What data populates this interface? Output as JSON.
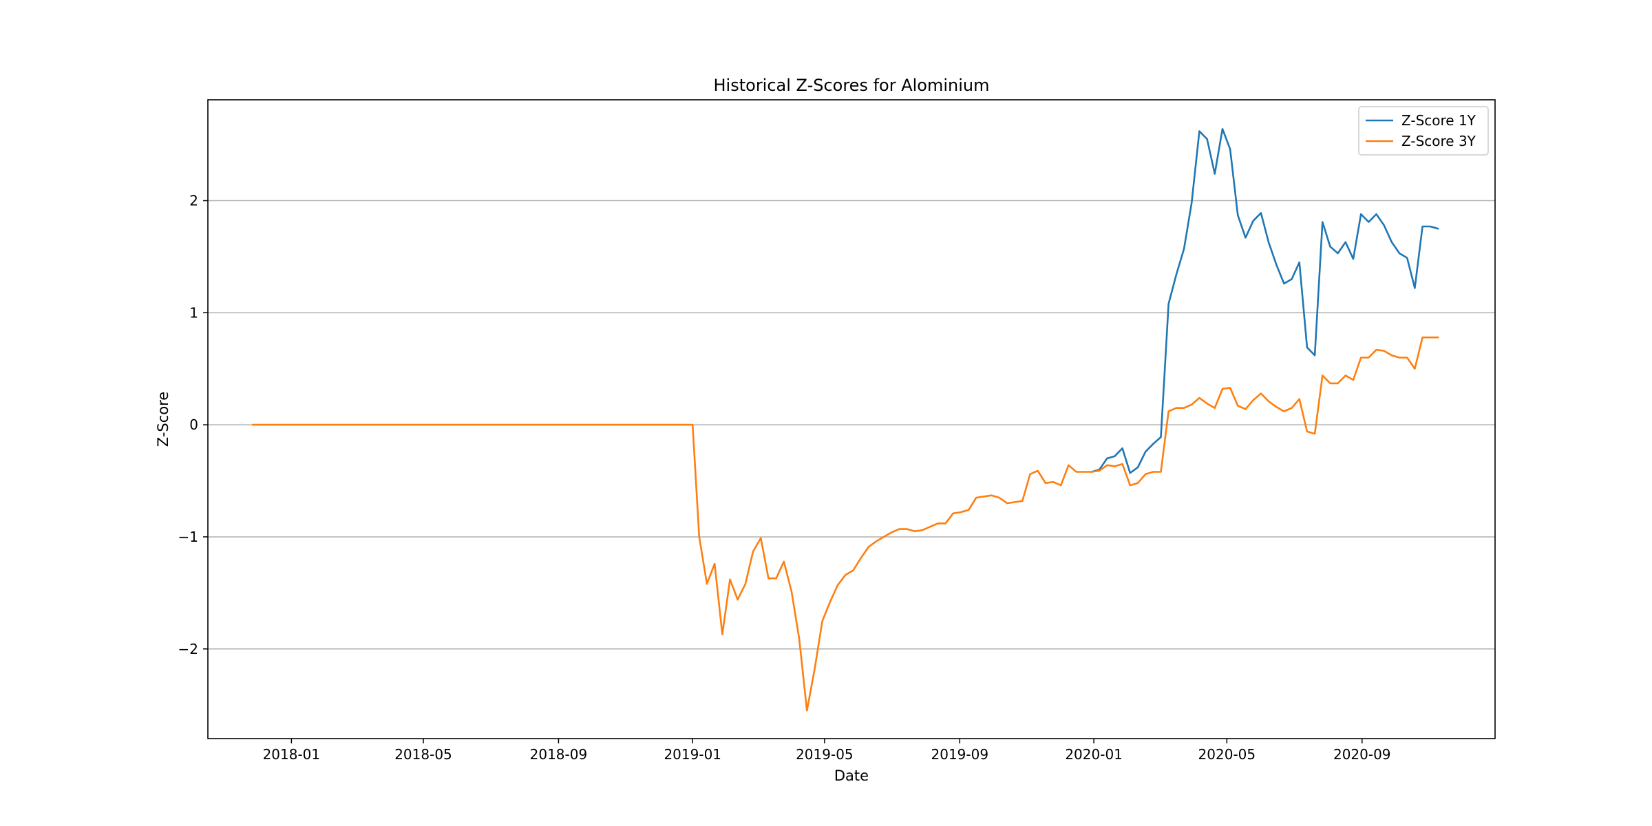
{
  "chart_data": {
    "type": "line",
    "title": "Historical Z-Scores for Alominium",
    "xlabel": "Date",
    "ylabel": "Z-Score",
    "xlim": [
      "2017-10-17",
      "2020-12-31"
    ],
    "ylim": [
      -2.8,
      2.9
    ],
    "x_ticks": [
      "2018-01",
      "2018-05",
      "2018-09",
      "2019-01",
      "2019-05",
      "2019-09",
      "2020-01",
      "2020-05",
      "2020-09"
    ],
    "x_tick_dates": [
      "2018-01-01",
      "2018-05-01",
      "2018-09-01",
      "2019-01-01",
      "2019-05-01",
      "2019-09-01",
      "2020-01-01",
      "2020-05-01",
      "2020-09-01"
    ],
    "y_ticks": [
      -2,
      -1,
      0,
      1,
      2
    ],
    "y_tick_labels": [
      "−2",
      "−1",
      "0",
      "1",
      "2"
    ],
    "grid": "horizontal",
    "legend_position": "top-right",
    "series": [
      {
        "name": "Z-Score 1Y",
        "color": "#1f77b4",
        "points": [
          [
            "2019-12-30",
            -0.42
          ],
          [
            "2020-01-06",
            -0.4
          ],
          [
            "2020-01-13",
            -0.3
          ],
          [
            "2020-01-20",
            -0.28
          ],
          [
            "2020-01-27",
            -0.21
          ],
          [
            "2020-02-03",
            -0.43
          ],
          [
            "2020-02-10",
            -0.38
          ],
          [
            "2020-02-17",
            -0.24
          ],
          [
            "2020-02-24",
            -0.17
          ],
          [
            "2020-03-02",
            -0.11
          ],
          [
            "2020-03-09",
            1.08
          ],
          [
            "2020-03-16",
            1.34
          ],
          [
            "2020-03-23",
            1.57
          ],
          [
            "2020-03-30",
            1.98
          ],
          [
            "2020-04-06",
            2.62
          ],
          [
            "2020-04-13",
            2.55
          ],
          [
            "2020-04-20",
            2.24
          ],
          [
            "2020-04-27",
            2.64
          ],
          [
            "2020-05-04",
            2.46
          ],
          [
            "2020-05-11",
            1.87
          ],
          [
            "2020-05-18",
            1.67
          ],
          [
            "2020-05-25",
            1.82
          ],
          [
            "2020-06-01",
            1.89
          ],
          [
            "2020-06-08",
            1.63
          ],
          [
            "2020-06-15",
            1.43
          ],
          [
            "2020-06-22",
            1.26
          ],
          [
            "2020-06-29",
            1.3
          ],
          [
            "2020-07-06",
            1.45
          ],
          [
            "2020-07-13",
            0.69
          ],
          [
            "2020-07-20",
            0.62
          ],
          [
            "2020-07-27",
            1.81
          ],
          [
            "2020-08-03",
            1.59
          ],
          [
            "2020-08-10",
            1.53
          ],
          [
            "2020-08-17",
            1.63
          ],
          [
            "2020-08-24",
            1.48
          ],
          [
            "2020-08-31",
            1.88
          ],
          [
            "2020-09-07",
            1.81
          ],
          [
            "2020-09-14",
            1.88
          ],
          [
            "2020-09-21",
            1.78
          ],
          [
            "2020-09-28",
            1.63
          ],
          [
            "2020-10-05",
            1.53
          ],
          [
            "2020-10-12",
            1.49
          ],
          [
            "2020-10-19",
            1.22
          ],
          [
            "2020-10-26",
            1.77
          ],
          [
            "2020-11-02",
            1.77
          ],
          [
            "2020-11-09",
            1.75
          ]
        ]
      },
      {
        "name": "Z-Score 3Y",
        "color": "#ff7f0e",
        "points": [
          [
            "2017-11-27",
            0.0
          ],
          [
            "2019-01-01",
            0.0
          ],
          [
            "2019-01-07",
            -1.0
          ],
          [
            "2019-01-14",
            -1.42
          ],
          [
            "2019-01-21",
            -1.24
          ],
          [
            "2019-01-28",
            -1.87
          ],
          [
            "2019-02-04",
            -1.38
          ],
          [
            "2019-02-11",
            -1.56
          ],
          [
            "2019-02-18",
            -1.42
          ],
          [
            "2019-02-25",
            -1.13
          ],
          [
            "2019-03-04",
            -1.01
          ],
          [
            "2019-03-11",
            -1.37
          ],
          [
            "2019-03-18",
            -1.37
          ],
          [
            "2019-03-25",
            -1.22
          ],
          [
            "2019-04-01",
            -1.49
          ],
          [
            "2019-04-08",
            -1.91
          ],
          [
            "2019-04-15",
            -2.55
          ],
          [
            "2019-04-22",
            -2.18
          ],
          [
            "2019-04-29",
            -1.75
          ],
          [
            "2019-05-06",
            -1.58
          ],
          [
            "2019-05-13",
            -1.43
          ],
          [
            "2019-05-20",
            -1.34
          ],
          [
            "2019-05-27",
            -1.3
          ],
          [
            "2019-06-03",
            -1.19
          ],
          [
            "2019-06-10",
            -1.09
          ],
          [
            "2019-06-17",
            -1.04
          ],
          [
            "2019-06-24",
            -1.0
          ],
          [
            "2019-07-01",
            -0.96
          ],
          [
            "2019-07-08",
            -0.93
          ],
          [
            "2019-07-15",
            -0.93
          ],
          [
            "2019-07-22",
            -0.95
          ],
          [
            "2019-07-29",
            -0.94
          ],
          [
            "2019-08-05",
            -0.91
          ],
          [
            "2019-08-12",
            -0.88
          ],
          [
            "2019-08-19",
            -0.88
          ],
          [
            "2019-08-26",
            -0.79
          ],
          [
            "2019-09-02",
            -0.78
          ],
          [
            "2019-09-09",
            -0.76
          ],
          [
            "2019-09-16",
            -0.65
          ],
          [
            "2019-09-23",
            -0.64
          ],
          [
            "2019-09-30",
            -0.63
          ],
          [
            "2019-10-07",
            -0.65
          ],
          [
            "2019-10-14",
            -0.7
          ],
          [
            "2019-10-21",
            -0.69
          ],
          [
            "2019-10-28",
            -0.68
          ],
          [
            "2019-11-04",
            -0.44
          ],
          [
            "2019-11-11",
            -0.41
          ],
          [
            "2019-11-18",
            -0.52
          ],
          [
            "2019-11-25",
            -0.51
          ],
          [
            "2019-12-02",
            -0.54
          ],
          [
            "2019-12-09",
            -0.36
          ],
          [
            "2019-12-16",
            -0.42
          ],
          [
            "2019-12-23",
            -0.42
          ],
          [
            "2019-12-30",
            -0.42
          ],
          [
            "2020-01-06",
            -0.41
          ],
          [
            "2020-01-13",
            -0.36
          ],
          [
            "2020-01-20",
            -0.37
          ],
          [
            "2020-01-27",
            -0.35
          ],
          [
            "2020-02-03",
            -0.54
          ],
          [
            "2020-02-10",
            -0.52
          ],
          [
            "2020-02-17",
            -0.44
          ],
          [
            "2020-02-24",
            -0.42
          ],
          [
            "2020-03-02",
            -0.42
          ],
          [
            "2020-03-09",
            0.12
          ],
          [
            "2020-03-16",
            0.15
          ],
          [
            "2020-03-23",
            0.15
          ],
          [
            "2020-03-30",
            0.18
          ],
          [
            "2020-04-06",
            0.24
          ],
          [
            "2020-04-13",
            0.19
          ],
          [
            "2020-04-20",
            0.15
          ],
          [
            "2020-04-27",
            0.32
          ],
          [
            "2020-05-04",
            0.33
          ],
          [
            "2020-05-11",
            0.17
          ],
          [
            "2020-05-18",
            0.14
          ],
          [
            "2020-05-25",
            0.22
          ],
          [
            "2020-06-01",
            0.28
          ],
          [
            "2020-06-08",
            0.21
          ],
          [
            "2020-06-15",
            0.16
          ],
          [
            "2020-06-22",
            0.12
          ],
          [
            "2020-06-29",
            0.15
          ],
          [
            "2020-07-06",
            0.23
          ],
          [
            "2020-07-13",
            -0.06
          ],
          [
            "2020-07-20",
            -0.08
          ],
          [
            "2020-07-27",
            0.44
          ],
          [
            "2020-08-03",
            0.37
          ],
          [
            "2020-08-10",
            0.37
          ],
          [
            "2020-08-17",
            0.44
          ],
          [
            "2020-08-24",
            0.4
          ],
          [
            "2020-08-31",
            0.6
          ],
          [
            "2020-09-07",
            0.6
          ],
          [
            "2020-09-14",
            0.67
          ],
          [
            "2020-09-21",
            0.66
          ],
          [
            "2020-09-28",
            0.62
          ],
          [
            "2020-10-05",
            0.6
          ],
          [
            "2020-10-12",
            0.6
          ],
          [
            "2020-10-19",
            0.5
          ],
          [
            "2020-10-26",
            0.78
          ],
          [
            "2020-11-02",
            0.78
          ],
          [
            "2020-11-09",
            0.78
          ]
        ]
      }
    ]
  }
}
